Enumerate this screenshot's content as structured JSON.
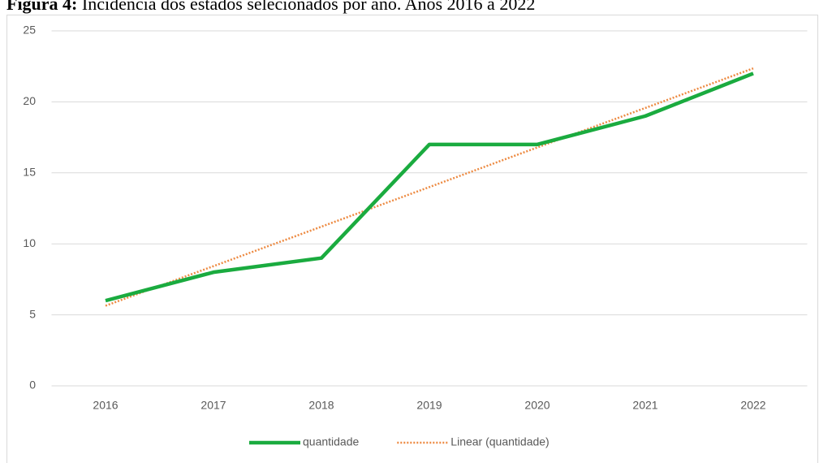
{
  "chart_data": {
    "type": "line",
    "title_label": "Figura 4:",
    "title": "Incidência dos estados selecionados por ano. Anos 2016 a 2022",
    "categories": [
      "2016",
      "2017",
      "2018",
      "2019",
      "2020",
      "2021",
      "2022"
    ],
    "series": [
      {
        "name": "quantidade",
        "color": "#1aab3f",
        "style": "solid",
        "values": [
          6,
          8,
          9,
          17,
          17,
          19,
          22
        ]
      },
      {
        "name": "Linear (quantidade)",
        "color": "#ed8b43",
        "style": "dotted",
        "values": [
          5.64,
          8.43,
          11.21,
          14,
          16.79,
          19.57,
          22.36
        ]
      }
    ],
    "ylim": [
      0,
      25
    ],
    "yticks": [
      0,
      5,
      10,
      15,
      20,
      25
    ],
    "grid": true,
    "legend": "bottom"
  }
}
